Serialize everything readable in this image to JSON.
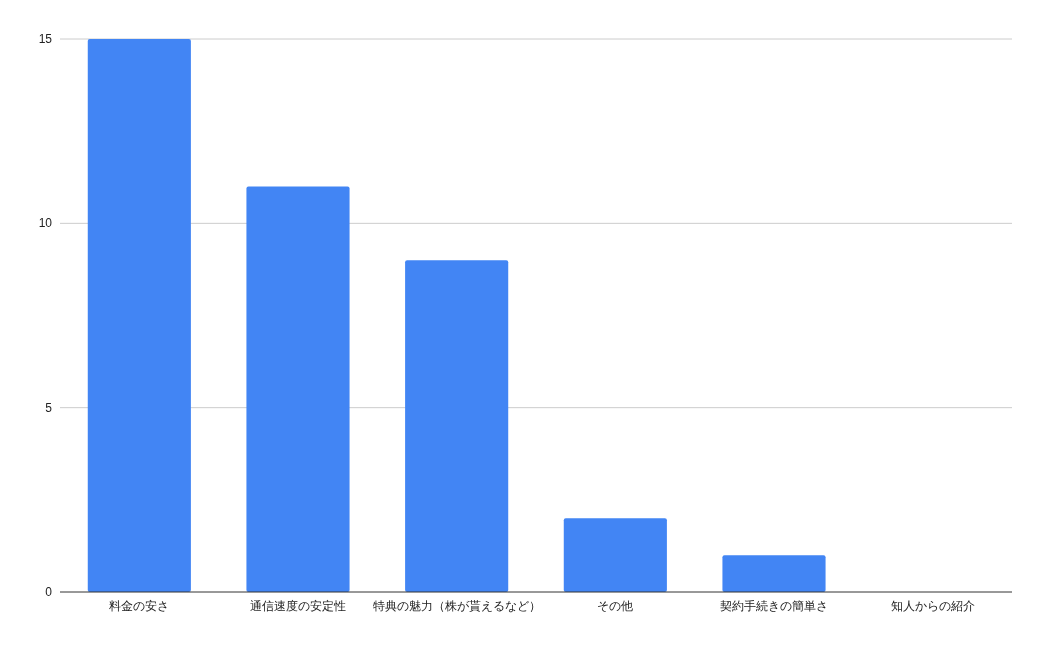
{
  "chart_data": {
    "type": "bar",
    "categories": [
      "料金の安さ",
      "通信速度の安定性",
      "特典の魅力（株が貰えるなど）",
      "その他",
      "契約手続きの簡単さ",
      "知人からの紹介"
    ],
    "values": [
      15,
      11,
      9,
      2,
      1,
      0
    ],
    "color": "#4285f4",
    "ylim": [
      0,
      15
    ],
    "yticks": [
      0,
      5,
      10,
      15
    ],
    "grid": "y"
  }
}
